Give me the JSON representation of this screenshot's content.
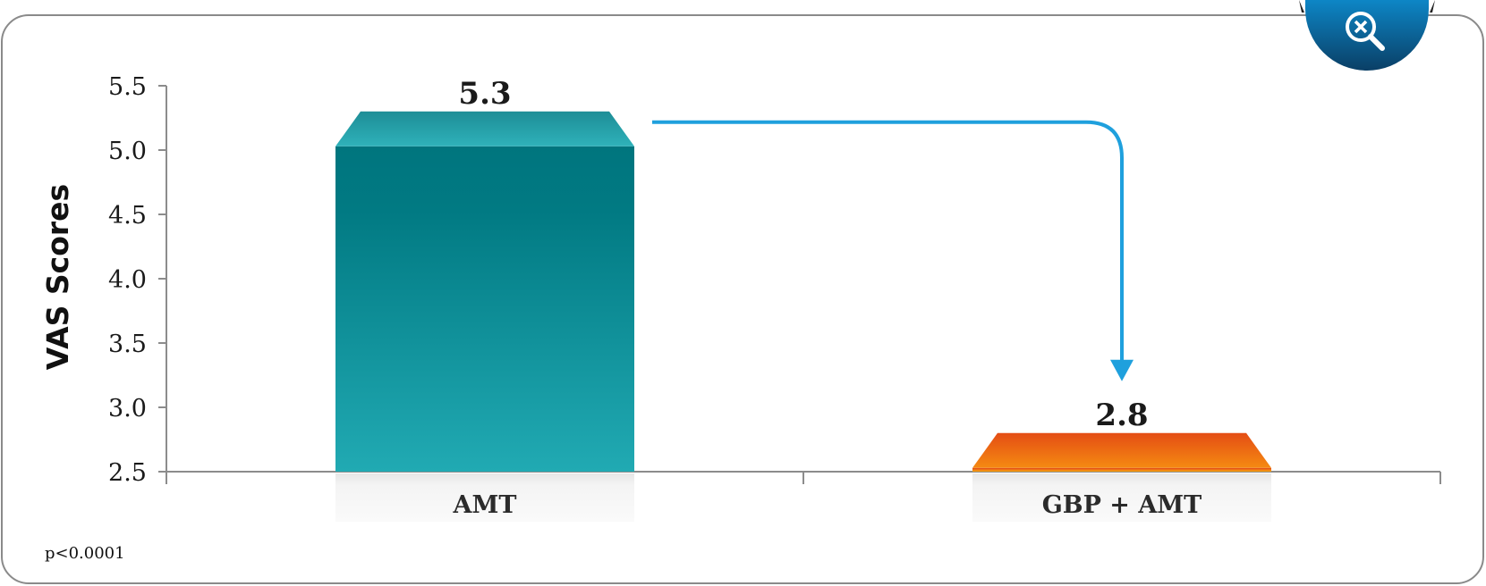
{
  "chart_data": {
    "type": "bar",
    "categories": [
      "AMT",
      "GBP + AMT"
    ],
    "values": [
      5.3,
      2.8
    ],
    "data_labels": [
      "5.3",
      "2.8"
    ],
    "ylabel": "VAS Scores",
    "xlabel": "",
    "ylim": [
      2.5,
      5.5
    ],
    "yticks": [
      2.5,
      3.0,
      3.5,
      4.0,
      4.5,
      5.0,
      5.5
    ],
    "ytick_labels": [
      "2.5",
      "3.0",
      "3.5",
      "4.0",
      "4.5",
      "5.0",
      "5.5"
    ],
    "grid": false,
    "legend": "none",
    "annotation": "p<0.0001",
    "bar_colors": {
      "AMT": {
        "top": "#26a5ad",
        "front_top": "#00757e",
        "front_bottom": "#21aab3"
      },
      "GBP + AMT": {
        "top": "#ea5a12",
        "front_top": "#e44c15",
        "front_bottom": "#f7a811"
      }
    },
    "arrow_color": "#1fa0dd"
  },
  "zoom_button": {
    "icon": "zoom-out-icon",
    "color": "#0b5a8c"
  }
}
